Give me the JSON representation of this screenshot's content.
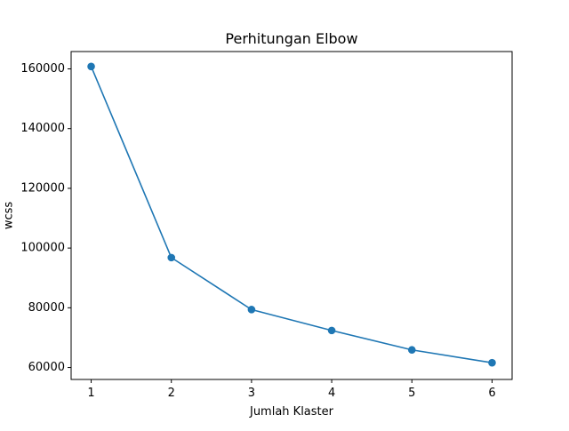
{
  "chart_data": {
    "type": "line",
    "title": "Perhitungan Elbow",
    "xlabel": "Jumlah Klaster",
    "ylabel": "wcss",
    "x": [
      1,
      2,
      3,
      4,
      5,
      6
    ],
    "series": [
      {
        "values": [
          160800,
          96800,
          79400,
          72400,
          65900,
          61600
        ],
        "color": "#1f77b4",
        "marker": "circle"
      }
    ],
    "xticks": [
      "1",
      "2",
      "3",
      "4",
      "5",
      "6"
    ],
    "yticks": [
      "60000",
      "80000",
      "100000",
      "120000",
      "140000",
      "160000"
    ],
    "xlim": [
      0.75,
      6.25
    ],
    "ylim": [
      56000,
      165800
    ],
    "grid": false,
    "legend": false
  }
}
